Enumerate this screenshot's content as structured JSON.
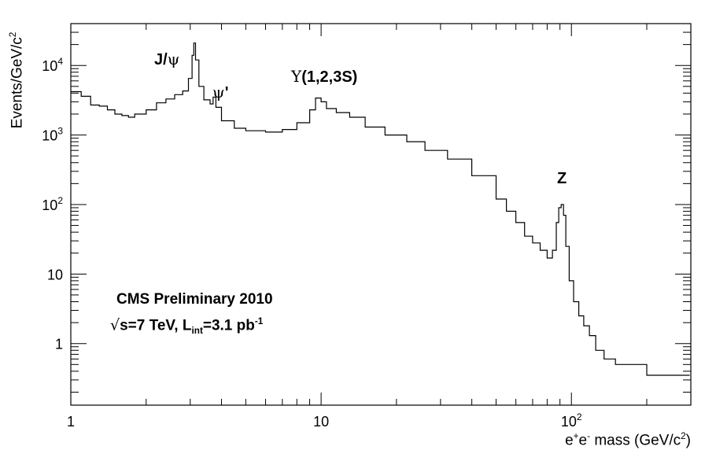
{
  "chart_data": {
    "type": "line",
    "style": "step-histogram",
    "xscale": "log",
    "yscale": "log",
    "xlim": [
      1,
      300
    ],
    "ylim": [
      0.13,
      40000
    ],
    "grid": false,
    "line_color": "#000000",
    "xlabel": {
      "pre": "e",
      "sup1": "+",
      "mid": "e",
      "sup2": "-",
      "post": " mass (GeV/c",
      "sup3": "2",
      "close": ")"
    },
    "ylabel": {
      "pre": "Events/GeV/c",
      "sup": "2"
    },
    "x_ticks": [
      {
        "value": 1,
        "label": "1"
      },
      {
        "value": 10,
        "label": "10"
      },
      {
        "value": 100,
        "label": "10",
        "exp": "2"
      }
    ],
    "y_ticks": [
      {
        "value": 1,
        "label": "1"
      },
      {
        "value": 10,
        "label": "10"
      },
      {
        "value": 100,
        "label": "10",
        "exp": "2"
      },
      {
        "value": 1000,
        "label": "10",
        "exp": "3"
      },
      {
        "value": 10000,
        "label": "10",
        "exp": "4"
      }
    ],
    "annotations": {
      "jpsi": {
        "text": "J/",
        "sym": "ψ"
      },
      "psiprime": {
        "sym": "ψ",
        "text": "'"
      },
      "upsilon": {
        "sym": "Υ",
        "text": "(1,2,3S)"
      },
      "z": {
        "text": "Z"
      },
      "experiment": {
        "text": "CMS Preliminary 2010"
      },
      "energy": {
        "sqrt": "√",
        "s": "s=7 TeV, L",
        "sub": "int",
        "mid": "=3.1 pb",
        "sup": "-1"
      }
    },
    "series": [
      {
        "values": [
          [
            1.0,
            4200
          ],
          [
            1.1,
            3600
          ],
          [
            1.2,
            2700
          ],
          [
            1.3,
            2600
          ],
          [
            1.4,
            2300
          ],
          [
            1.5,
            2000
          ],
          [
            1.6,
            1900
          ],
          [
            1.7,
            1800
          ],
          [
            1.8,
            2000
          ],
          [
            2.0,
            2300
          ],
          [
            2.2,
            2900
          ],
          [
            2.4,
            3300
          ],
          [
            2.6,
            3800
          ],
          [
            2.8,
            4300
          ],
          [
            2.95,
            6500
          ],
          [
            3.05,
            14000
          ],
          [
            3.1,
            21000
          ],
          [
            3.15,
            12000
          ],
          [
            3.25,
            5000
          ],
          [
            3.4,
            3200
          ],
          [
            3.6,
            2800
          ],
          [
            3.7,
            3500
          ],
          [
            3.8,
            2500
          ],
          [
            4.0,
            1600
          ],
          [
            4.5,
            1250
          ],
          [
            5.0,
            1150
          ],
          [
            6.0,
            1100
          ],
          [
            7.0,
            1200
          ],
          [
            8.0,
            1500
          ],
          [
            9.0,
            2300
          ],
          [
            9.5,
            3400
          ],
          [
            10.0,
            3000
          ],
          [
            10.5,
            2400
          ],
          [
            11.5,
            2100
          ],
          [
            13.0,
            1800
          ],
          [
            15.0,
            1300
          ],
          [
            18.0,
            1000
          ],
          [
            22.0,
            800
          ],
          [
            26.0,
            600
          ],
          [
            32.0,
            450
          ],
          [
            40.0,
            260
          ],
          [
            50.0,
            120
          ],
          [
            55.0,
            80
          ],
          [
            60.0,
            55
          ],
          [
            65.0,
            35
          ],
          [
            70.0,
            28
          ],
          [
            75.0,
            22
          ],
          [
            80.0,
            17
          ],
          [
            84.0,
            22
          ],
          [
            87.0,
            55
          ],
          [
            89.0,
            90
          ],
          [
            91.0,
            100
          ],
          [
            93.0,
            70
          ],
          [
            95.0,
            25
          ],
          [
            98.0,
            8
          ],
          [
            102.0,
            4
          ],
          [
            107.0,
            2.5
          ],
          [
            112.0,
            1.8
          ],
          [
            118.0,
            1.3
          ],
          [
            125.0,
            0.8
          ],
          [
            135.0,
            0.6
          ],
          [
            150.0,
            0.5
          ],
          [
            170.0,
            0.5
          ],
          [
            200.0,
            0.35
          ]
        ]
      }
    ]
  }
}
